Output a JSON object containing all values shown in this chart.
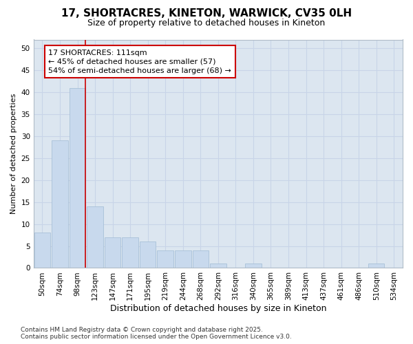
{
  "title_line1": "17, SHORTACRES, KINETON, WARWICK, CV35 0LH",
  "title_line2": "Size of property relative to detached houses in Kineton",
  "xlabel": "Distribution of detached houses by size in Kineton",
  "ylabel": "Number of detached properties",
  "categories": [
    "50sqm",
    "74sqm",
    "98sqm",
    "123sqm",
    "147sqm",
    "171sqm",
    "195sqm",
    "219sqm",
    "244sqm",
    "268sqm",
    "292sqm",
    "316sqm",
    "340sqm",
    "365sqm",
    "389sqm",
    "413sqm",
    "437sqm",
    "461sqm",
    "486sqm",
    "510sqm",
    "534sqm"
  ],
  "values": [
    8,
    29,
    41,
    14,
    7,
    7,
    6,
    4,
    4,
    4,
    1,
    0,
    1,
    0,
    0,
    0,
    0,
    0,
    0,
    1,
    0
  ],
  "bar_color": "#c8d9ed",
  "bar_edge_color": "#a8c0d8",
  "vline_x_index": 2,
  "vline_color": "#cc0000",
  "annotation_text": "17 SHORTACRES: 111sqm\n← 45% of detached houses are smaller (57)\n54% of semi-detached houses are larger (68) →",
  "ylim": [
    0,
    52
  ],
  "yticks": [
    0,
    5,
    10,
    15,
    20,
    25,
    30,
    35,
    40,
    45,
    50
  ],
  "grid_color": "#c8d4e8",
  "plot_bg_color": "#dce6f0",
  "fig_bg_color": "#ffffff",
  "footer_line1": "Contains HM Land Registry data © Crown copyright and database right 2025.",
  "footer_line2": "Contains public sector information licensed under the Open Government Licence v3.0.",
  "title1_fontsize": 11,
  "title2_fontsize": 9,
  "xlabel_fontsize": 9,
  "ylabel_fontsize": 8,
  "tick_fontsize": 7.5,
  "annot_fontsize": 8,
  "footer_fontsize": 6.5
}
